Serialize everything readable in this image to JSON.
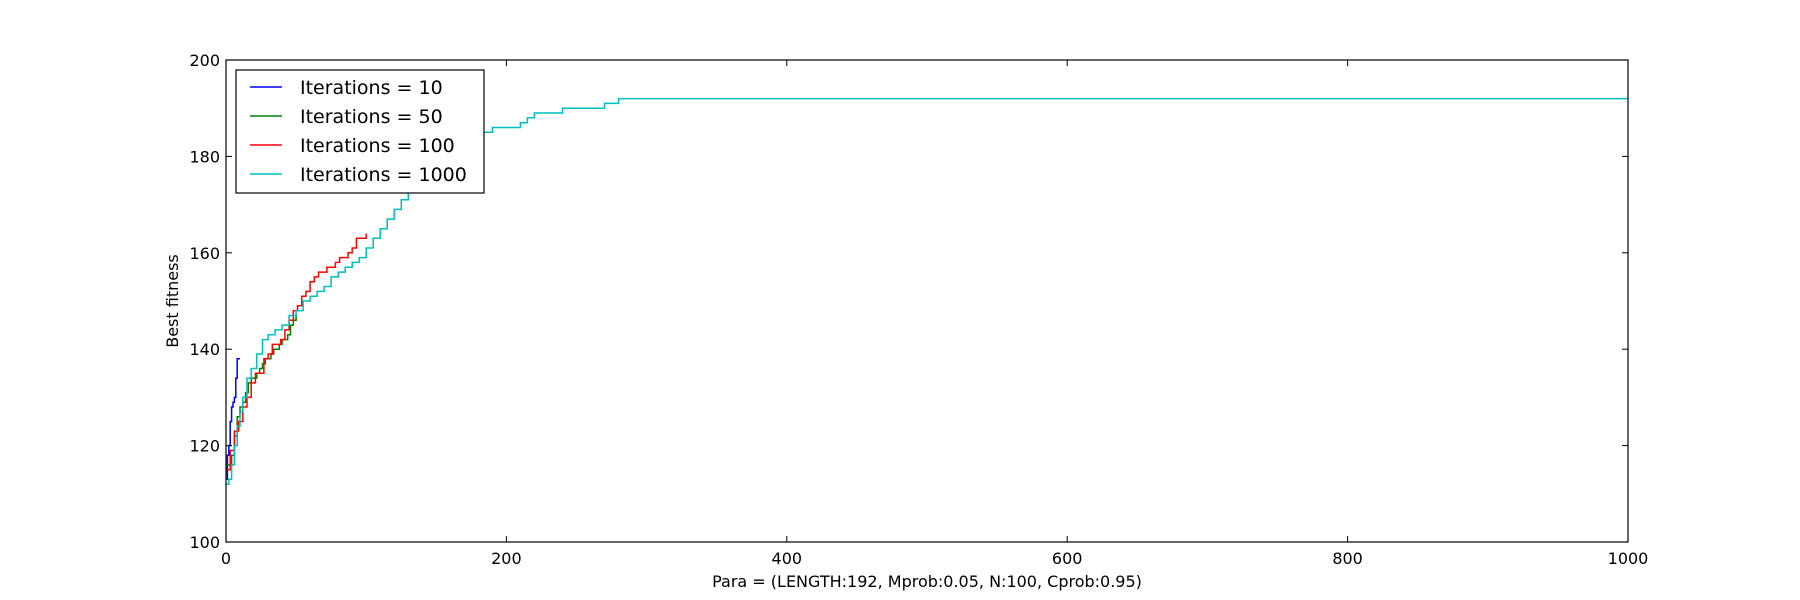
{
  "chart_data": {
    "type": "line",
    "title": "",
    "xlabel": "Para = (LENGTH:192, Mprob:0.05, N:100, Cprob:0.95)",
    "ylabel": "Best fitness",
    "xlim": [
      0,
      1000
    ],
    "ylim": [
      100,
      200
    ],
    "xticks": [
      0,
      200,
      400,
      600,
      800,
      1000
    ],
    "yticks": [
      100,
      120,
      140,
      160,
      180,
      200
    ],
    "grid": false,
    "legend_position": "top-left",
    "series": [
      {
        "name": "Iterations = 10",
        "color": "#0000ff",
        "x": [
          0,
          1,
          2,
          3,
          4,
          5,
          6,
          7,
          8,
          9,
          10
        ],
        "y": [
          113,
          118,
          120,
          125,
          128,
          129,
          130,
          134,
          138,
          138,
          138
        ]
      },
      {
        "name": "Iterations = 50",
        "color": "#008000",
        "x": [
          0,
          2,
          4,
          6,
          8,
          10,
          12,
          14,
          16,
          18,
          20,
          22,
          24,
          26,
          28,
          30,
          32,
          34,
          36,
          38,
          40,
          42,
          44,
          46,
          48,
          50
        ],
        "y": [
          116,
          116,
          118,
          122,
          126,
          128,
          129,
          131,
          133,
          134,
          134,
          135,
          136,
          137,
          138,
          138,
          139,
          140,
          140,
          141,
          142,
          142,
          143,
          145,
          146,
          147
        ]
      },
      {
        "name": "Iterations = 100",
        "color": "#ff0000",
        "x": [
          0,
          3,
          6,
          9,
          12,
          15,
          18,
          21,
          24,
          27,
          30,
          33,
          36,
          39,
          42,
          45,
          48,
          51,
          54,
          57,
          60,
          63,
          66,
          69,
          72,
          75,
          78,
          81,
          84,
          87,
          90,
          93,
          96,
          100
        ],
        "y": [
          115,
          119,
          123,
          125,
          128,
          130,
          133,
          135,
          135,
          138,
          139,
          141,
          141,
          142,
          144,
          146,
          148,
          149,
          151,
          152,
          154,
          155,
          156,
          156,
          157,
          157,
          158,
          159,
          159,
          160,
          161,
          163,
          163,
          164
        ]
      },
      {
        "name": "Iterations = 1000",
        "color": "#00bfbf",
        "x": [
          0,
          2,
          4,
          6,
          8,
          10,
          12,
          15,
          18,
          22,
          26,
          30,
          35,
          40,
          45,
          50,
          55,
          60,
          65,
          70,
          75,
          80,
          85,
          90,
          95,
          100,
          105,
          110,
          115,
          120,
          125,
          130,
          135,
          140,
          145,
          150,
          160,
          170,
          180,
          185,
          190,
          200,
          210,
          215,
          220,
          230,
          240,
          250,
          260,
          270,
          275,
          280,
          300,
          400,
          600,
          800,
          1000
        ],
        "y": [
          112,
          113,
          116,
          120,
          124,
          127,
          130,
          134,
          136,
          139,
          142,
          143,
          144,
          145,
          147,
          148,
          150,
          151,
          152,
          153,
          155,
          156,
          157,
          158,
          159,
          161,
          163,
          165,
          167,
          169,
          171,
          173,
          175,
          176,
          178,
          180,
          182,
          184,
          185,
          185,
          186,
          186,
          187,
          188,
          189,
          189,
          190,
          190,
          190,
          191,
          191,
          192,
          192,
          192,
          192,
          192,
          192
        ]
      }
    ]
  }
}
